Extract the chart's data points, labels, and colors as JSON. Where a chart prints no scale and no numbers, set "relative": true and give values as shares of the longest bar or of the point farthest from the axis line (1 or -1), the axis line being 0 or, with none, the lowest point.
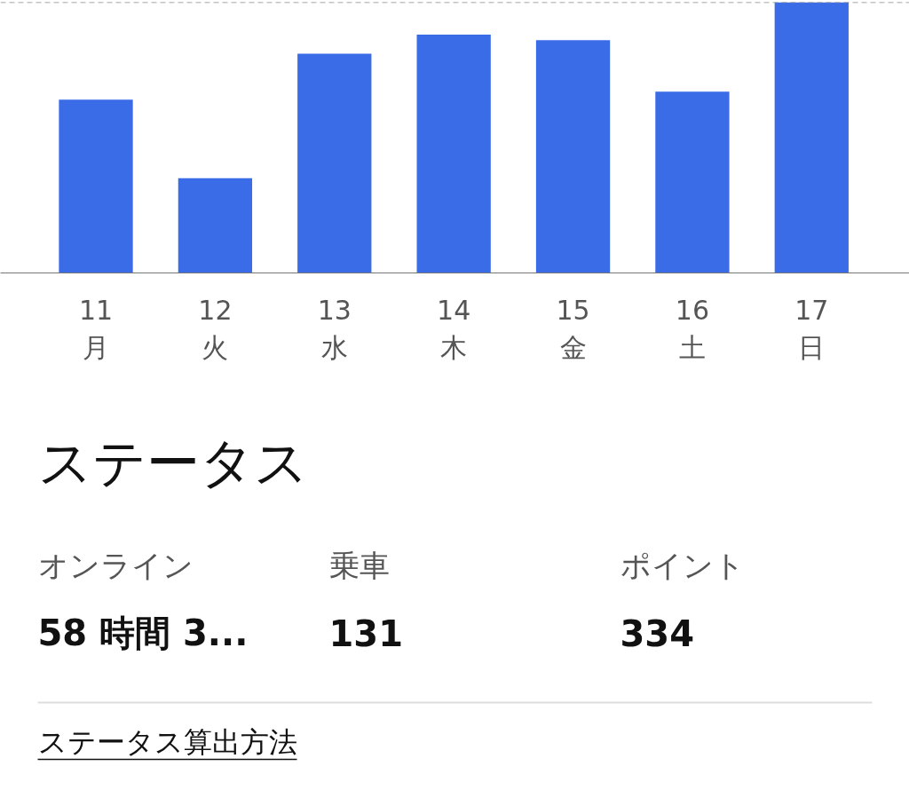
{
  "chart_data": [
    {
      "type": "bar",
      "relative": true,
      "categories": [
        "11\n月",
        "12\n火",
        "13\n水",
        "14\n木",
        "15\n金",
        "16\n土",
        "17\n日"
      ],
      "values": [
        0.64,
        0.35,
        0.81,
        0.88,
        0.86,
        0.67,
        1.0
      ],
      "color": "#3b6ce8",
      "ref_lines": [
        {
          "axis": "y",
          "value": 1.0,
          "color": "#888888",
          "line_style": "dashed"
        }
      ]
    },
    {
      "type": "other",
      "title": "ステータス",
      "annotations": [
        "オンライン",
        "58 時間 3...",
        "乗車",
        "131",
        "ポイント",
        "334",
        "ステータス算出方法"
      ]
    }
  ]
}
